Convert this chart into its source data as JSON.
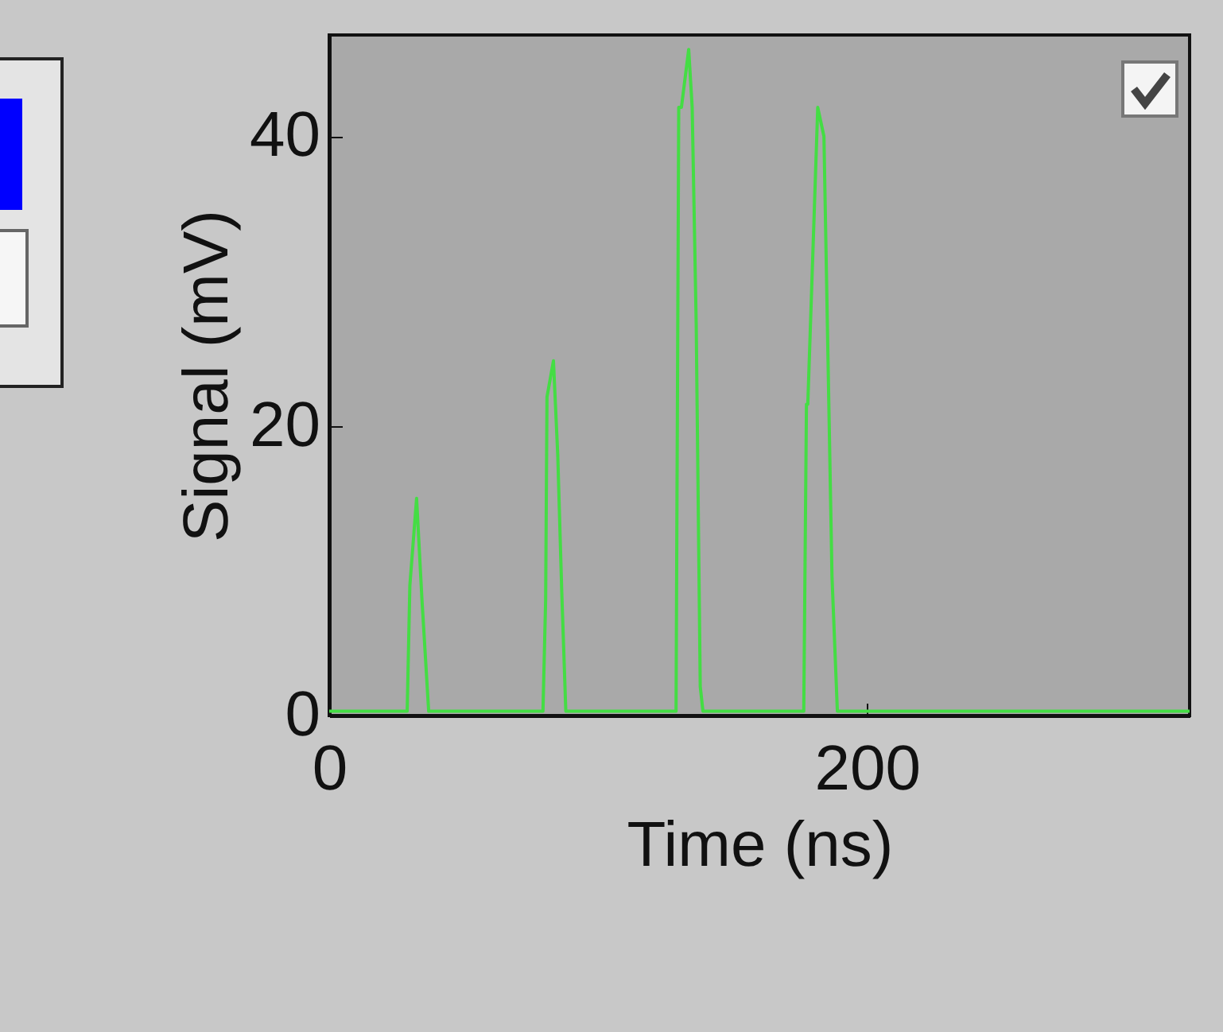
{
  "chart_data": {
    "type": "line",
    "xlabel": "Time (ns)",
    "ylabel": "Signal (mV)",
    "xlim": [
      0,
      320
    ],
    "ylim": [
      0,
      47
    ],
    "xticks": [
      0,
      200
    ],
    "yticks": [
      0,
      20,
      40
    ],
    "grid": false,
    "legend": false,
    "x": [
      0,
      29,
      30,
      32.5,
      34.5,
      37,
      79.5,
      80.5,
      81,
      83.4,
      85,
      86.5,
      88,
      129,
      130,
      131,
      133.7,
      135,
      136.5,
      138,
      139,
      176.5,
      177.5,
      178,
      181.7,
      184,
      187,
      189,
      320
    ],
    "series": [
      {
        "color": "#44dd44",
        "values": [
          0.3,
          0.3,
          9,
          15,
          8,
          0.3,
          0.3,
          8,
          22,
          24.5,
          18,
          8.5,
          0.3,
          0.3,
          42,
          42,
          46,
          42,
          27,
          2,
          0.3,
          0.3,
          21.5,
          21.5,
          42,
          40,
          9.6,
          0.3,
          0.3
        ]
      }
    ]
  }
}
